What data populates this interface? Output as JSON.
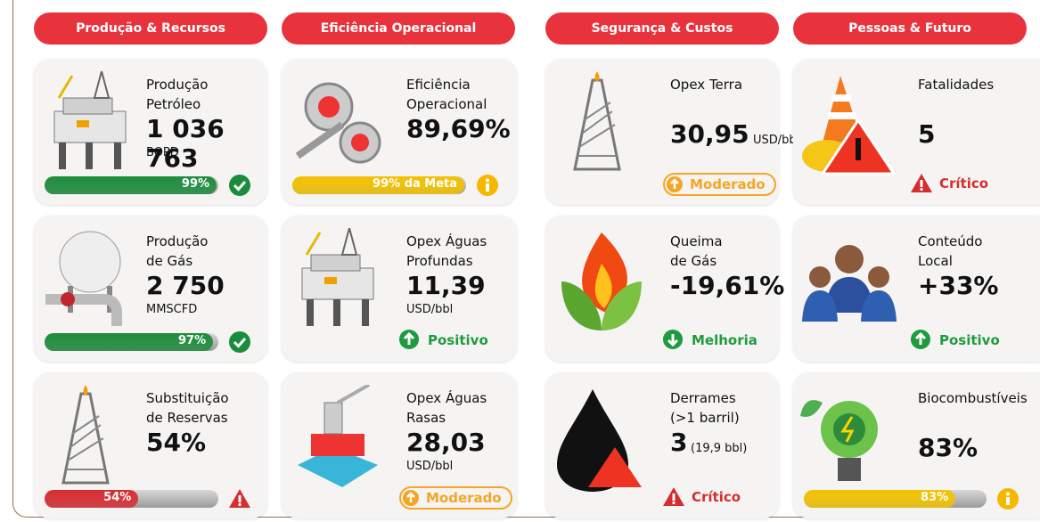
{
  "columns": [
    {
      "header": "Produção & Recursos",
      "cards": [
        {
          "title": [
            "Produção",
            "Petróleo"
          ],
          "value": "1 036 763",
          "unit": "BOPD",
          "progress": {
            "value": 99,
            "label": "99%"
          }
        },
        {
          "title": [
            "Produção",
            "de Gás"
          ],
          "value": "2 750",
          "unit": "MMSCFD",
          "progress": {
            "value": 97,
            "label": "97%"
          }
        },
        {
          "title": [
            "Substituição",
            "de Reservas"
          ],
          "value": "54%",
          "progress": {
            "value": 54,
            "label": "54%"
          }
        }
      ]
    },
    {
      "header": "Eficiência Operacional",
      "cards": [
        {
          "title": [
            "Eficiência",
            "Operacional"
          ],
          "value": "89,69%",
          "progress": {
            "value": 99,
            "label": "99% da Meta"
          }
        },
        {
          "title": [
            "Opex Águas",
            "Profundas"
          ],
          "value": "11,39",
          "unit": "USD/bbl",
          "status": "Positivo"
        },
        {
          "title": [
            "Opex Águas",
            "Rasas"
          ],
          "value": "28,03",
          "unit": "USD/bbl",
          "status": "Moderado"
        }
      ]
    },
    {
      "header": "Segurança & Custos",
      "cards": [
        {
          "title": [
            "Opex Terra"
          ],
          "value": "30,95",
          "unit": "USD/bbl",
          "status": "Moderado"
        },
        {
          "title": [
            "Queima",
            "de Gás"
          ],
          "value": "-19,61%",
          "status": "Melhoria"
        },
        {
          "title": [
            "Derrames",
            "(>1 barril)"
          ],
          "value": "3",
          "unit": "(19,9 bbl)",
          "status": "Crítico"
        }
      ]
    },
    {
      "header": "Pessoas & Futuro",
      "cards": [
        {
          "title": [
            "Fatalidades"
          ],
          "value": "5",
          "status": "Crítico"
        },
        {
          "title": [
            "Conteúdo",
            "Local"
          ],
          "value": "+33%",
          "status": "Positivo"
        },
        {
          "title": [
            "Biocombustíveis"
          ],
          "value": "83%",
          "progress": {
            "value": 83,
            "label": "83%"
          }
        }
      ]
    }
  ]
}
